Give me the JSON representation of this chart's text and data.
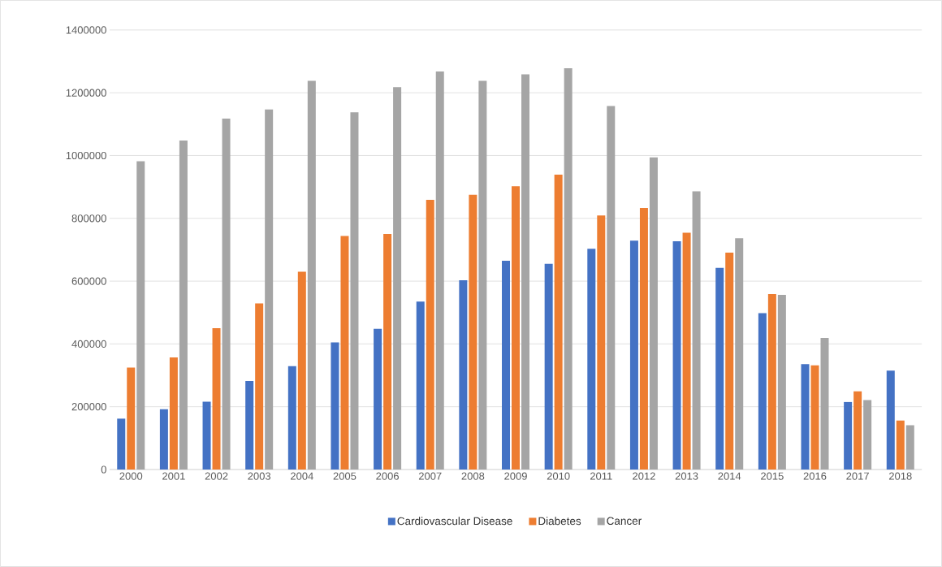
{
  "chart_data": {
    "type": "bar",
    "categories": [
      "2000",
      "2001",
      "2002",
      "2003",
      "2004",
      "2005",
      "2006",
      "2007",
      "2008",
      "2009",
      "2010",
      "2011",
      "2012",
      "2013",
      "2014",
      "2015",
      "2016",
      "2017",
      "2018"
    ],
    "series": [
      {
        "name": "Cardiovascular Disease",
        "color": "#4472c4",
        "values": [
          162000,
          192000,
          216000,
          282000,
          329000,
          405000,
          448000,
          535000,
          603000,
          665000,
          655000,
          703000,
          729000,
          727000,
          642000,
          498000,
          336000,
          215000,
          315000
        ]
      },
      {
        "name": "Diabetes",
        "color": "#ed7d31",
        "values": [
          325000,
          357000,
          450000,
          529000,
          630000,
          744000,
          750000,
          859000,
          875000,
          902000,
          939000,
          809000,
          833000,
          754000,
          691000,
          559000,
          332000,
          249000,
          156000
        ]
      },
      {
        "name": "Cancer",
        "color": "#a5a5a5",
        "values": [
          982000,
          1048000,
          1118000,
          1147000,
          1238000,
          1138000,
          1218000,
          1268000,
          1238000,
          1259000,
          1278000,
          1158000,
          994000,
          886000,
          737000,
          556000,
          419000,
          221000,
          141000
        ]
      }
    ],
    "ylim": [
      0,
      1400000
    ],
    "yticks": [
      0,
      200000,
      400000,
      600000,
      800000,
      1000000,
      1200000,
      1400000
    ],
    "grid": "y",
    "legend": "bottom"
  }
}
